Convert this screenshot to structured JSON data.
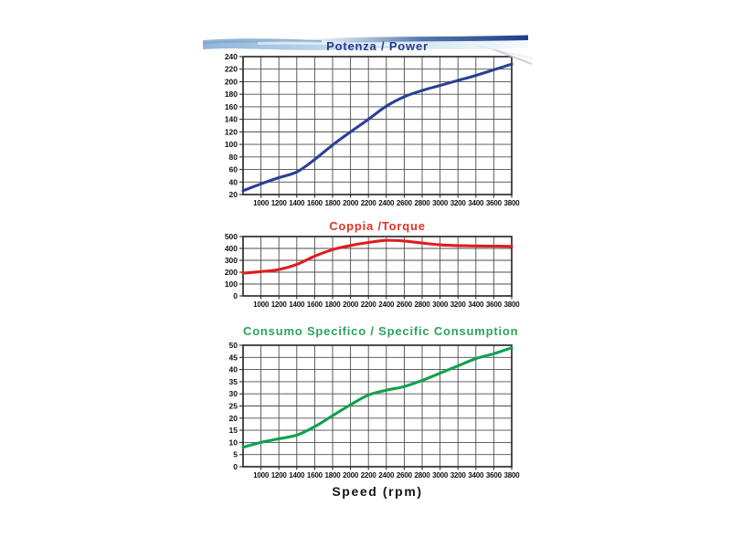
{
  "x_axis_title": "Speed (rpm)",
  "decor": {
    "band_light_blue": "#aecbe5",
    "band_pale_blue": "#e7f1f9",
    "band_mid_blue": "#7fa8cc",
    "band_dark_blue": "#28487e",
    "streak_gray": "#c5cad3"
  },
  "axis_style": {
    "grid_color": "#4d4d4d",
    "frame_color": "#2e2e2e",
    "tick_label_color": "#101010"
  },
  "chart_data": [
    {
      "type": "line",
      "title": "Potenza / Power",
      "title_color": "#2b3a8c",
      "line_color": "#2a3f97",
      "x": [
        800,
        1000,
        1200,
        1400,
        1600,
        1800,
        2000,
        2200,
        2400,
        2600,
        2800,
        3000,
        3200,
        3400,
        3600,
        3800
      ],
      "values": [
        26,
        37,
        47,
        56,
        76,
        99,
        120,
        140,
        161,
        176,
        186,
        194,
        202,
        210,
        219,
        228
      ],
      "ylim": [
        20,
        240
      ],
      "y_step": 20,
      "y_tick_labels": [
        "240",
        "220",
        "200",
        "180",
        "160",
        "140",
        "120",
        "100",
        "80",
        "60",
        "40",
        "20"
      ],
      "x_tick_labels": [
        "1000",
        "1200",
        "1400",
        "1600",
        "1800",
        "2000",
        "2200",
        "2400",
        "2600",
        "2800",
        "3000",
        "3200",
        "3400",
        "3600",
        "3800"
      ],
      "grid": true,
      "legend": "none"
    },
    {
      "type": "line",
      "title": "Coppia /Torque",
      "title_color": "#e23227",
      "line_color": "#e01c22",
      "x": [
        800,
        1000,
        1200,
        1400,
        1600,
        1800,
        2000,
        2200,
        2400,
        2600,
        2800,
        3000,
        3200,
        3400,
        3600,
        3800
      ],
      "values": [
        192,
        205,
        222,
        265,
        335,
        390,
        425,
        450,
        468,
        462,
        445,
        430,
        424,
        421,
        419,
        417
      ],
      "ylim": [
        0,
        500
      ],
      "y_step": 100,
      "y_tick_labels": [
        "500",
        "400",
        "300",
        "200",
        "100",
        "0"
      ],
      "x_tick_labels": [
        "1000",
        "1200",
        "1400",
        "1600",
        "1800",
        "2000",
        "2200",
        "2400",
        "2600",
        "2800",
        "3000",
        "3200",
        "3400",
        "3600",
        "3800"
      ],
      "grid": true,
      "legend": "none"
    },
    {
      "type": "line",
      "title": "Consumo Specifico / Specific Consumption",
      "title_color": "#2aa45c",
      "line_color": "#10a14e",
      "x": [
        800,
        1000,
        1200,
        1400,
        1600,
        1800,
        2000,
        2200,
        2400,
        2600,
        2800,
        3000,
        3200,
        3400,
        3600,
        3800
      ],
      "values": [
        8,
        10,
        11.5,
        13,
        16.5,
        21,
        25.5,
        29.5,
        31.5,
        33,
        35.5,
        38.5,
        41.5,
        44.5,
        46.5,
        49
      ],
      "ylim": [
        0,
        50
      ],
      "y_step": 5,
      "y_tick_labels": [
        "50",
        "45",
        "40",
        "35",
        "30",
        "25",
        "20",
        "15",
        "10",
        "5",
        "0"
      ],
      "x_tick_labels": [
        "1000",
        "1200",
        "1400",
        "1600",
        "1800",
        "2000",
        "2200",
        "2400",
        "2600",
        "2800",
        "3000",
        "3200",
        "3400",
        "3600",
        "3800"
      ],
      "grid": true,
      "legend": "none"
    }
  ]
}
